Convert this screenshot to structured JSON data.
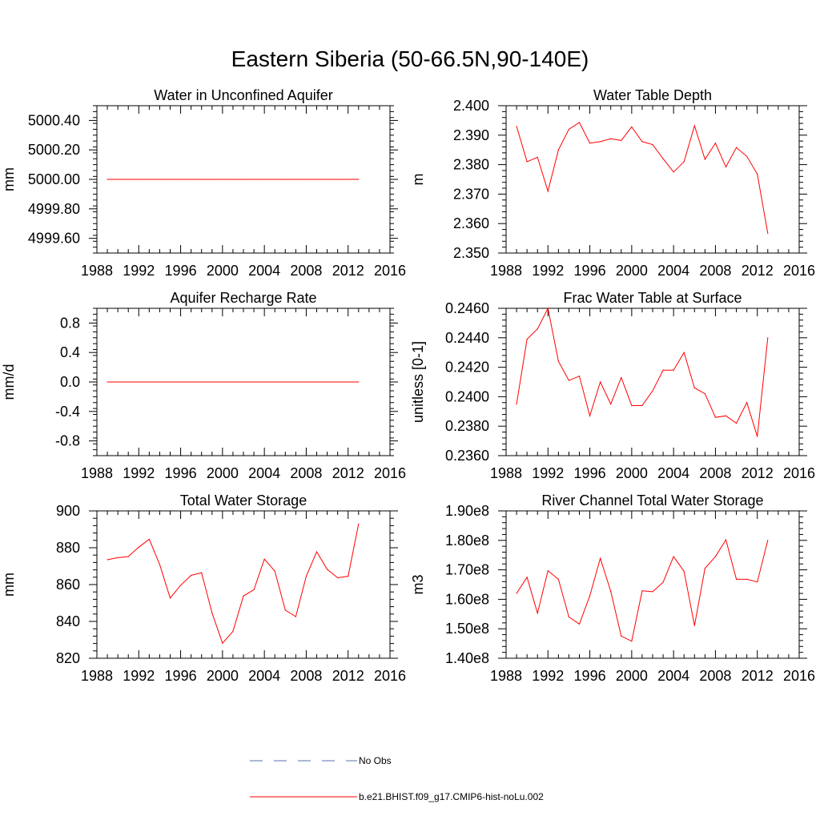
{
  "figure": {
    "title": "Eastern Siberia (50-66.5N,90-140E)",
    "line_color": "#ff0000",
    "obs_color": "#5a6fb0",
    "legend": [
      {
        "label": "No Obs",
        "style": "dashed",
        "color": "#5a6fb0"
      },
      {
        "label": "b.e21.BHIST.f09_g17.CMIP6-hist-noLu.002",
        "style": "solid",
        "color": "#ff0000"
      }
    ]
  },
  "chart_data": [
    {
      "type": "line",
      "title": "Water in Unconfined Aquifer",
      "ylabel": "mm",
      "xlim": [
        1988,
        2016
      ],
      "xticks": [
        1988,
        1992,
        1996,
        2000,
        2004,
        2008,
        2012,
        2016
      ],
      "ylim": [
        4999.5,
        5000.5
      ],
      "yticks": [
        4999.6,
        4999.8,
        5000.0,
        5000.2,
        5000.4
      ],
      "ytick_labels": [
        "4999.60",
        "4999.80",
        "5000.00",
        "5000.20",
        "5000.40"
      ],
      "x": [
        1989,
        1990,
        1991,
        1992,
        1993,
        1994,
        1995,
        1996,
        1997,
        1998,
        1999,
        2000,
        2001,
        2002,
        2003,
        2004,
        2005,
        2006,
        2007,
        2008,
        2009,
        2010,
        2011,
        2012,
        2013
      ],
      "series": [
        {
          "values": [
            5000,
            5000,
            5000,
            5000,
            5000,
            5000,
            5000,
            5000,
            5000,
            5000,
            5000,
            5000,
            5000,
            5000,
            5000,
            5000,
            5000,
            5000,
            5000,
            5000,
            5000,
            5000,
            5000,
            5000,
            5000
          ]
        }
      ]
    },
    {
      "type": "line",
      "title": "Water Table Depth",
      "ylabel": "m",
      "xlim": [
        1988,
        2016
      ],
      "xticks": [
        1988,
        1992,
        1996,
        2000,
        2004,
        2008,
        2012,
        2016
      ],
      "ylim": [
        2.35,
        2.4
      ],
      "yticks": [
        2.35,
        2.36,
        2.37,
        2.38,
        2.39,
        2.4
      ],
      "ytick_labels": [
        "2.350",
        "2.360",
        "2.370",
        "2.380",
        "2.390",
        "2.400"
      ],
      "x": [
        1989,
        1990,
        1991,
        1992,
        1993,
        1994,
        1995,
        1996,
        1997,
        1998,
        1999,
        2000,
        2001,
        2002,
        2003,
        2004,
        2005,
        2006,
        2007,
        2008,
        2009,
        2010,
        2011,
        2012,
        2013
      ],
      "series": [
        {
          "values": [
            2.393,
            2.381,
            2.3825,
            2.371,
            2.385,
            2.392,
            2.3943,
            2.3873,
            2.3878,
            2.3888,
            2.3882,
            2.3928,
            2.3878,
            2.3868,
            2.382,
            2.3775,
            2.381,
            2.3932,
            2.3818,
            2.3873,
            2.3792,
            2.3858,
            2.3828,
            2.3768,
            2.3567
          ]
        }
      ]
    },
    {
      "type": "line",
      "title": "Aquifer Recharge Rate",
      "ylabel": "mm/d",
      "xlim": [
        1988,
        2016
      ],
      "xticks": [
        1988,
        1992,
        1996,
        2000,
        2004,
        2008,
        2012,
        2016
      ],
      "ylim": [
        -1.0,
        1.0
      ],
      "yticks": [
        -0.8,
        -0.4,
        0.0,
        0.4,
        0.8
      ],
      "ytick_labels": [
        "-0.8",
        "-0.4",
        "0.0",
        "0.4",
        "0.8"
      ],
      "x": [
        1989,
        1990,
        1991,
        1992,
        1993,
        1994,
        1995,
        1996,
        1997,
        1998,
        1999,
        2000,
        2001,
        2002,
        2003,
        2004,
        2005,
        2006,
        2007,
        2008,
        2009,
        2010,
        2011,
        2012,
        2013
      ],
      "series": [
        {
          "values": [
            0,
            0,
            0,
            0,
            0,
            0,
            0,
            0,
            0,
            0,
            0,
            0,
            0,
            0,
            0,
            0,
            0,
            0,
            0,
            0,
            0,
            0,
            0,
            0,
            0
          ]
        }
      ]
    },
    {
      "type": "line",
      "title": "Frac Water Table at Surface",
      "ylabel": "unitless [0-1]",
      "xlim": [
        1988,
        2016
      ],
      "xticks": [
        1988,
        1992,
        1996,
        2000,
        2004,
        2008,
        2012,
        2016
      ],
      "ylim": [
        0.236,
        0.246
      ],
      "yticks": [
        0.236,
        0.238,
        0.24,
        0.242,
        0.244,
        0.246
      ],
      "ytick_labels": [
        "0.2360",
        "0.2380",
        "0.2400",
        "0.2420",
        "0.2440",
        "0.2460"
      ],
      "x": [
        1989,
        1990,
        1991,
        1992,
        1993,
        1994,
        1995,
        1996,
        1997,
        1998,
        1999,
        2000,
        2001,
        2002,
        2003,
        2004,
        2005,
        2006,
        2007,
        2008,
        2009,
        2010,
        2011,
        2012,
        2013
      ],
      "series": [
        {
          "values": [
            0.2395,
            0.2439,
            0.2446,
            0.246,
            0.2424,
            0.2411,
            0.2414,
            0.2387,
            0.241,
            0.2395,
            0.2413,
            0.2394,
            0.2394,
            0.2404,
            0.2418,
            0.2418,
            0.243,
            0.2406,
            0.2402,
            0.2386,
            0.2387,
            0.2382,
            0.2396,
            0.2373,
            0.244
          ]
        }
      ]
    },
    {
      "type": "line",
      "title": "Total Water Storage",
      "ylabel": "mm",
      "xlim": [
        1988,
        2016
      ],
      "xticks": [
        1988,
        1992,
        1996,
        2000,
        2004,
        2008,
        2012,
        2016
      ],
      "ylim": [
        820,
        900
      ],
      "yticks": [
        820,
        840,
        860,
        880,
        900
      ],
      "ytick_labels": [
        "820",
        "840",
        "860",
        "880",
        "900"
      ],
      "x": [
        1989,
        1990,
        1991,
        1992,
        1993,
        1994,
        1995,
        1996,
        1997,
        1998,
        1999,
        2000,
        2001,
        2002,
        2003,
        2004,
        2005,
        2006,
        2007,
        2008,
        2009,
        2010,
        2011,
        2012,
        2013
      ],
      "series": [
        {
          "values": [
            873.5,
            874.6,
            875.2,
            880.3,
            884.6,
            870.9,
            852.7,
            859.6,
            865.0,
            866.4,
            844.6,
            828.2,
            834.6,
            853.8,
            857.2,
            873.8,
            867.3,
            846.1,
            842.6,
            864.5,
            877.8,
            868.3,
            863.7,
            864.5,
            892.9
          ]
        }
      ]
    },
    {
      "type": "line",
      "title": "River Channel Total Water Storage",
      "ylabel": "m3",
      "xlim": [
        1988,
        2016
      ],
      "xticks": [
        1988,
        1992,
        1996,
        2000,
        2004,
        2008,
        2012,
        2016
      ],
      "ylim": [
        140000000.0,
        190000000.0
      ],
      "yticks": [
        140000000.0,
        150000000.0,
        160000000.0,
        170000000.0,
        180000000.0,
        190000000.0
      ],
      "ytick_labels": [
        "1.40e8",
        "1.50e8",
        "1.60e8",
        "1.70e8",
        "1.80e8",
        "1.90e8"
      ],
      "x": [
        1989,
        1990,
        1991,
        1992,
        1993,
        1994,
        1995,
        1996,
        1997,
        1998,
        1999,
        2000,
        2001,
        2002,
        2003,
        2004,
        2005,
        2006,
        2007,
        2008,
        2009,
        2010,
        2011,
        2012,
        2013
      ],
      "series": [
        {
          "values": [
            162000000.0,
            167500000.0,
            155300000.0,
            169700000.0,
            166800000.0,
            154000000.0,
            151600000.0,
            161200000.0,
            173900000.0,
            162700000.0,
            147500000.0,
            145800000.0,
            162900000.0,
            162600000.0,
            165800000.0,
            174500000.0,
            169500000.0,
            151100000.0,
            170500000.0,
            174500000.0,
            180200000.0,
            166800000.0,
            166800000.0,
            165900000.0,
            180000000.0
          ]
        }
      ]
    }
  ]
}
